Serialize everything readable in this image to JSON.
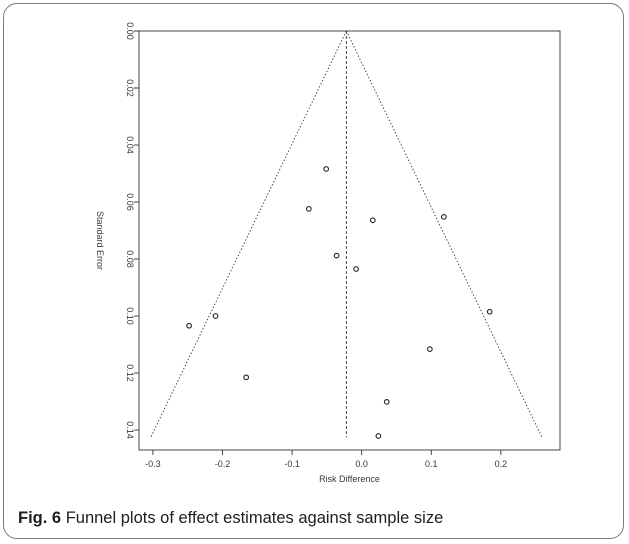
{
  "caption": {
    "label": "Fig. 6",
    "text": "Funnel plots of effect estimates against sample size"
  },
  "chart_data": {
    "type": "scatter",
    "title": "",
    "xlabel": "Risk Difference",
    "ylabel": "Standard Error",
    "xlim": [
      -0.32,
      0.285
    ],
    "ylim": [
      0,
      0.147
    ],
    "y_reversed": true,
    "grid": false,
    "x_ticks": [
      -0.3,
      -0.2,
      -0.1,
      0.0,
      0.1,
      0.2
    ],
    "x_tick_labels": [
      "-0.3",
      "-0.2",
      "-0.1",
      "0.0",
      "0.1",
      "0.2"
    ],
    "y_ticks": [
      0.0,
      0.02,
      0.04,
      0.06,
      0.08,
      0.1,
      0.12,
      0.14
    ],
    "y_tick_labels": [
      "0.00",
      "0.02",
      "0.04",
      "0.06",
      "0.08",
      "0.10",
      "0.12",
      "0.14"
    ],
    "pooled_estimate": -0.022,
    "funnel": {
      "apex": [
        -0.022,
        0.0
      ],
      "left_base": [
        -0.303,
        0.1425
      ],
      "right_base": [
        0.259,
        0.1425
      ]
    },
    "points": [
      {
        "x": -0.051,
        "y": 0.0484
      },
      {
        "x": -0.076,
        "y": 0.0624
      },
      {
        "x": 0.016,
        "y": 0.0664
      },
      {
        "x": 0.118,
        "y": 0.0652
      },
      {
        "x": -0.036,
        "y": 0.0788
      },
      {
        "x": -0.008,
        "y": 0.0835
      },
      {
        "x": -0.21,
        "y": 0.1
      },
      {
        "x": -0.248,
        "y": 0.1034
      },
      {
        "x": 0.184,
        "y": 0.0985
      },
      {
        "x": 0.098,
        "y": 0.1116
      },
      {
        "x": -0.166,
        "y": 0.1215
      },
      {
        "x": 0.036,
        "y": 0.1301
      },
      {
        "x": 0.024,
        "y": 0.1421
      }
    ]
  }
}
